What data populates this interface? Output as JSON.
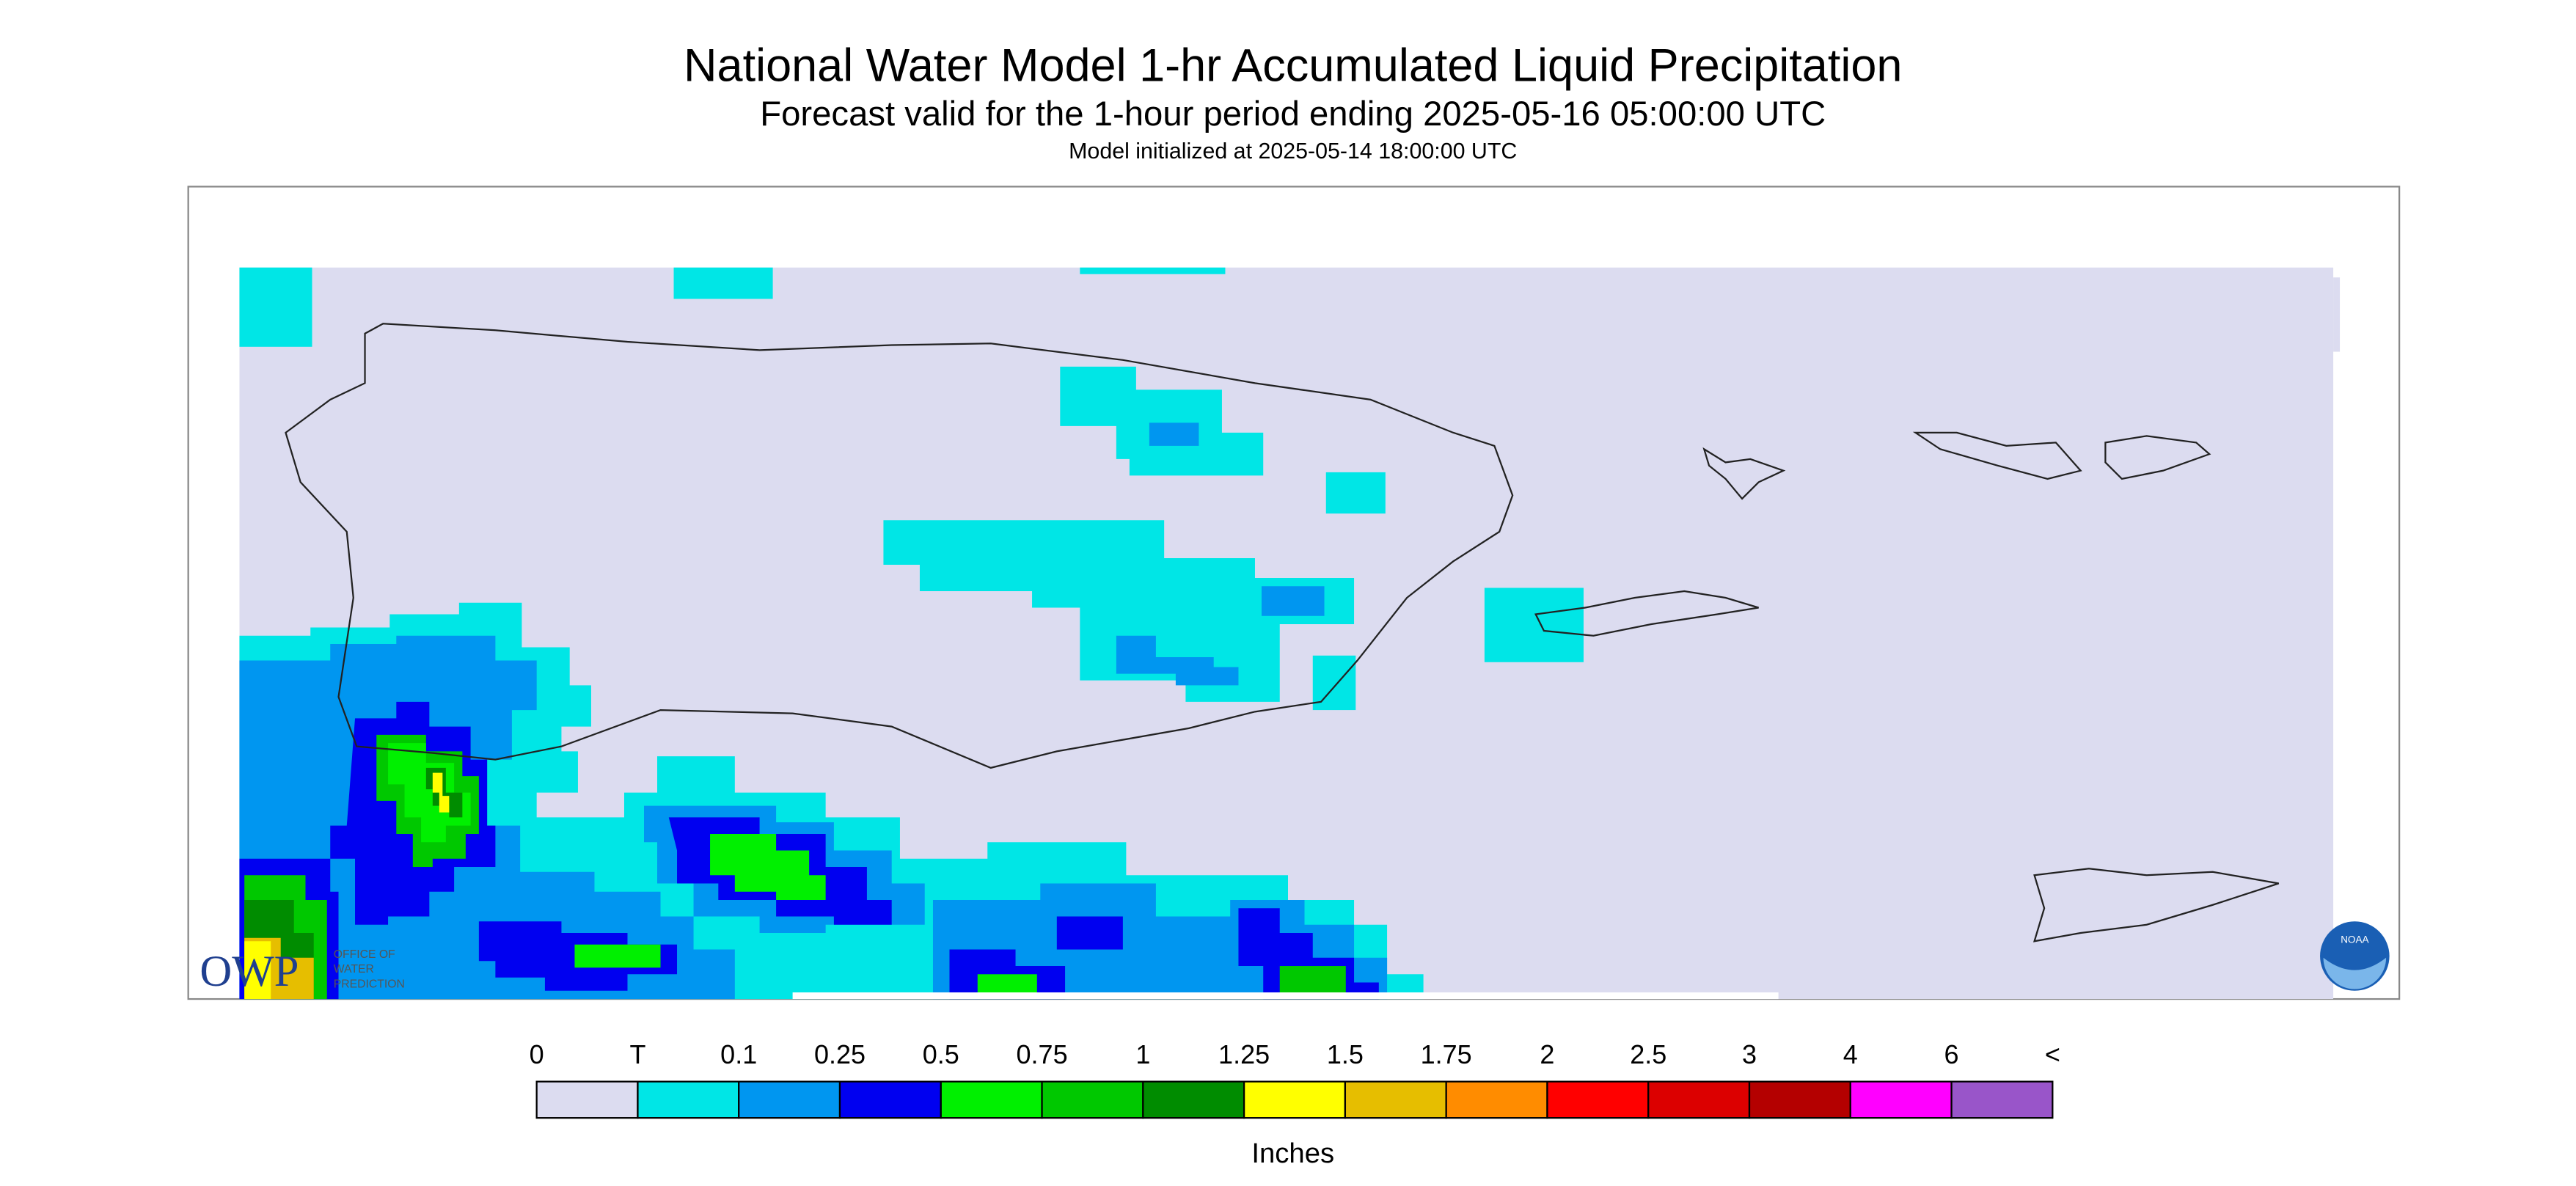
{
  "header": {
    "title": "National Water Model 1-hr Accumulated Liquid Precipitation",
    "subtitle": "Forecast valid for the 1-hour period ending 2025-05-16 05:00:00 UTC",
    "initialized": "Model initialized at 2025-05-14 18:00:00 UTC"
  },
  "logos": {
    "owp": "OWP",
    "owp_text": [
      "OFFICE OF",
      "WATER",
      "PREDICTION"
    ],
    "noaa": "NOAA"
  },
  "legend": {
    "labels": [
      "0",
      "T",
      "0.1",
      "0.25",
      "0.5",
      "0.75",
      "1",
      "1.25",
      "1.5",
      "1.75",
      "2",
      "2.5",
      "3",
      "4",
      "6",
      "<"
    ],
    "colors": [
      "#dcdcf0",
      "#00e6e6",
      "#0096f0",
      "#0000f0",
      "#00f000",
      "#00c800",
      "#008c00",
      "#ffff00",
      "#e6be00",
      "#ff8c00",
      "#ff0000",
      "#dc0000",
      "#b40000",
      "#ff00ff",
      "#9955c9"
    ],
    "unit": "Inches"
  }
}
